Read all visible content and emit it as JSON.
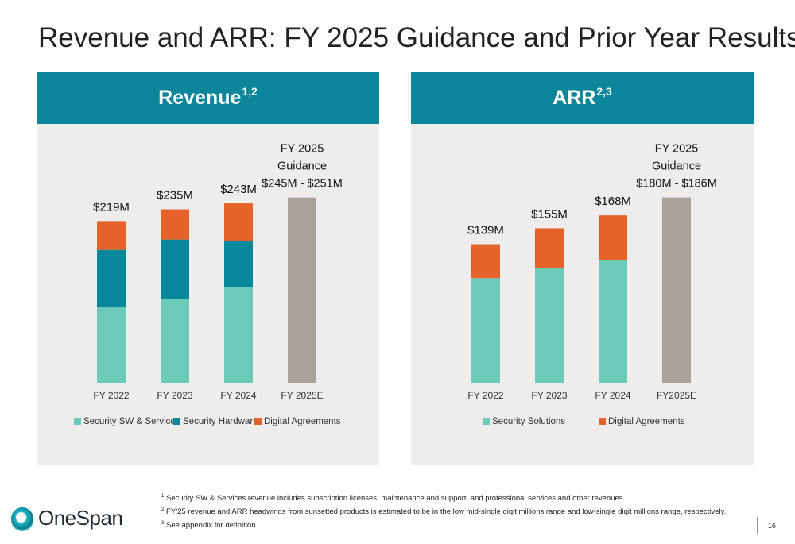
{
  "title": "Revenue and ARR: FY 2025 Guidance and Prior Year Results",
  "colors": {
    "header": "#0b8599",
    "panel_bg": "#efedeb",
    "mint": "#6ccbb8",
    "teal": "#07879a",
    "orange": "#e5622b",
    "grey": "#aaa198"
  },
  "chart_data": [
    {
      "type": "bar",
      "stacked": true,
      "title": "Revenue",
      "title_sup": "1,2",
      "categories": [
        "FY 2022",
        "FY 2023",
        "FY 2024",
        "FY 2025E"
      ],
      "series": [
        {
          "name": "Security SW & Services",
          "color": "#6ccbb8",
          "values": [
            102,
            113,
            129,
            null
          ]
        },
        {
          "name": "Security Hardware",
          "color": "#07879a",
          "values": [
            78,
            81,
            63,
            null
          ]
        },
        {
          "name": "Digital Agreements",
          "color": "#e5622b",
          "values": [
            39,
            41,
            51,
            null
          ]
        },
        {
          "name": "",
          "color": "#aaa198",
          "values": [
            null,
            null,
            null,
            251
          ]
        }
      ],
      "totals": [
        219,
        235,
        243,
        251
      ],
      "bar_labels": [
        "$219M",
        "$235M",
        "$243M"
      ],
      "guidance_label": [
        "FY 2025",
        "Guidance",
        "$245M - $251M"
      ],
      "ylim": [
        0,
        270
      ]
    },
    {
      "type": "bar",
      "stacked": true,
      "title": "ARR",
      "title_sup": "2,3",
      "categories": [
        "FY 2022",
        "FY 2023",
        "FY 2024",
        "FY2025E"
      ],
      "series": [
        {
          "name": "Security Solutions",
          "color": "#6ccbb8",
          "values": [
            105,
            115,
            123,
            null
          ]
        },
        {
          "name": "Digital Agreements",
          "color": "#e5622b",
          "values": [
            34,
            40,
            45,
            null
          ]
        },
        {
          "name": "",
          "color": "#aaa198",
          "values": [
            null,
            null,
            null,
            186
          ]
        }
      ],
      "totals": [
        139,
        155,
        168,
        186
      ],
      "bar_labels": [
        "$139M",
        "$155M",
        "$168M"
      ],
      "guidance_label": [
        "FY 2025",
        "Guidance",
        "$180M - $186M"
      ],
      "ylim": [
        0,
        200
      ]
    }
  ],
  "footnotes": [
    {
      "sup": "1",
      "text": "Security SW & Services revenue includes subscription licenses, maintenance and support, and professional services and other revenues."
    },
    {
      "sup": "2",
      "text": "FY’25 revenue and ARR headwinds from sunsetted products is estimated to be in the low mid-single digit millions range and low-single digit millions range, respectively."
    },
    {
      "sup": "3",
      "text": "See appendix for definition."
    }
  ],
  "logo_text": "OneSpan",
  "page_number": "16"
}
